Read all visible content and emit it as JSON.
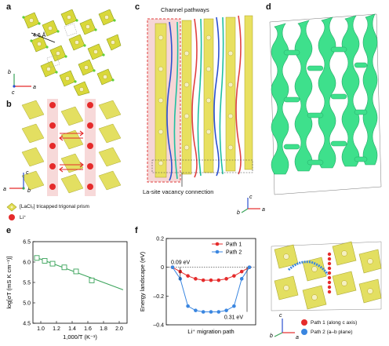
{
  "panels": {
    "a": {
      "label": "a",
      "distance": "4.6 Å",
      "axes": {
        "b": "b",
        "a": "a",
        "c": "c"
      }
    },
    "b": {
      "label": "b",
      "axes": {
        "c": "c",
        "a": "a",
        "b": "b"
      },
      "legend": [
        {
          "text": "[LaCl₉] tricapped trigonal prism",
          "icon": "yellow-prism-icon"
        },
        {
          "text": "Li⁺",
          "icon": "red-sphere-icon",
          "color": "#e52b2b"
        }
      ]
    },
    "c": {
      "label": "c",
      "annotation_top": "Channel pathways",
      "annotation_bottom": "La-site vacancy connection",
      "axes": {
        "c": "c",
        "b": "b",
        "a": "a"
      }
    },
    "d": {
      "label": "d"
    },
    "e": {
      "label": "e"
    },
    "f": {
      "label": "f",
      "axes": {
        "c": "c",
        "b": "b",
        "a": "a"
      },
      "legend_bottom": [
        {
          "text": "Path 1 (along c axis)",
          "color": "#e52b2b"
        },
        {
          "text": "Path 2 (a–b plane)",
          "color": "#3a86e0"
        }
      ]
    }
  },
  "chart_data": [
    {
      "type": "scatter",
      "panel": "e",
      "xlabel": "1,000/T (K⁻¹)",
      "ylabel": "log[σT (mS K cm⁻¹)]",
      "xlim": [
        0.9,
        2.1
      ],
      "ylim": [
        4.5,
        6.5
      ],
      "xticks": [
        "1.0",
        "1.2",
        "1.4",
        "1.6",
        "1.8",
        "2.0"
      ],
      "yticks": [
        "4.5",
        "5.0",
        "5.5",
        "6.0",
        "6.5"
      ],
      "x": [
        0.95,
        1.05,
        1.15,
        1.3,
        1.45,
        1.65
      ],
      "y": [
        6.1,
        6.03,
        5.96,
        5.87,
        5.77,
        5.55
      ],
      "fit_line": {
        "x": [
          0.93,
          2.05
        ],
        "y": [
          6.12,
          5.32
        ]
      },
      "color": "#3aa35a"
    },
    {
      "type": "line",
      "panel": "f",
      "xlabel": "Li⁺ migration path",
      "ylabel": "Energy landscape (eV)",
      "ylim": [
        -0.4,
        0.2
      ],
      "yticks": [
        "0.2",
        "0",
        "–0.2",
        "–0.4"
      ],
      "annotations": [
        "0.09 eV",
        "0.31 eV"
      ],
      "series": [
        {
          "name": "Path 1",
          "color": "#e52b2b",
          "x": [
            0,
            1,
            2,
            3,
            4,
            5,
            6,
            7,
            8,
            9,
            10
          ],
          "y": [
            0,
            -0.03,
            -0.06,
            -0.08,
            -0.09,
            -0.09,
            -0.09,
            -0.08,
            -0.06,
            -0.03,
            0
          ]
        },
        {
          "name": "Path 2",
          "color": "#3a86e0",
          "x": [
            0,
            1,
            2,
            3,
            4,
            5,
            6,
            7,
            8,
            9,
            10
          ],
          "y": [
            0,
            -0.08,
            -0.27,
            -0.3,
            -0.31,
            -0.31,
            -0.31,
            -0.3,
            -0.27,
            -0.08,
            0
          ]
        }
      ]
    }
  ]
}
